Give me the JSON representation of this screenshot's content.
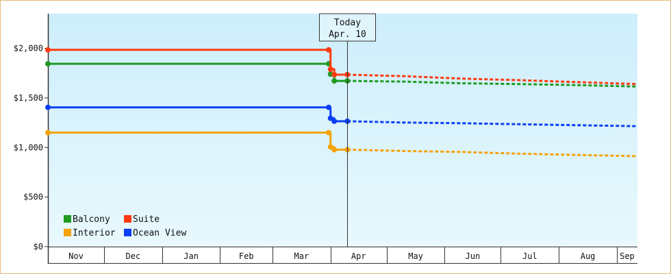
{
  "chart_data": {
    "type": "line",
    "title": "",
    "xlabel": "",
    "ylabel": "",
    "ylim": [
      0,
      2350
    ],
    "y_ticks": [
      0,
      500,
      1000,
      1500,
      2000
    ],
    "y_tick_labels": [
      "$0",
      "$500",
      "$1,000",
      "$1,500",
      "$2,000"
    ],
    "x_axis": {
      "months": [
        {
          "label": "Nov",
          "start": "2018-11-01",
          "end": "2018-12-01"
        },
        {
          "label": "Dec",
          "start": "2018-12-01",
          "end": "2019-01-01"
        },
        {
          "label": "Jan",
          "start": "2019-01-01",
          "end": "2019-02-01"
        },
        {
          "label": "Feb",
          "start": "2019-02-01",
          "end": "2019-03-01"
        },
        {
          "label": "Mar",
          "start": "2019-03-01",
          "end": "2019-04-01"
        },
        {
          "label": "Apr",
          "start": "2019-04-01",
          "end": "2019-05-01"
        },
        {
          "label": "May",
          "start": "2019-05-01",
          "end": "2019-06-01"
        },
        {
          "label": "Jun",
          "start": "2019-06-01",
          "end": "2019-07-01"
        },
        {
          "label": "Jul",
          "start": "2019-07-01",
          "end": "2019-08-01"
        },
        {
          "label": "Aug",
          "start": "2019-08-01",
          "end": "2019-09-01"
        },
        {
          "label": "Sep",
          "start": "2019-09-01",
          "end": "2019-09-12"
        }
      ],
      "range": [
        "2018-11-01",
        "2019-09-12"
      ]
    },
    "today": {
      "title": "Today",
      "label": "Apr. 10",
      "date": "2019-04-10"
    },
    "grid": false,
    "legend_position": "bottom-left",
    "series": [
      {
        "name": "Balcony",
        "color": "#1f9a1f",
        "actual": [
          {
            "date": "2018-11-01",
            "value": 1845
          },
          {
            "date": "2019-03-31",
            "value": 1845
          },
          {
            "date": "2019-04-01",
            "value": 1740
          },
          {
            "date": "2019-04-03",
            "value": 1672
          },
          {
            "date": "2019-04-10",
            "value": 1672
          }
        ],
        "forecast": [
          {
            "date": "2019-04-10",
            "value": 1672
          },
          {
            "date": "2019-05-10",
            "value": 1665
          },
          {
            "date": "2019-06-10",
            "value": 1648
          },
          {
            "date": "2019-07-10",
            "value": 1640
          },
          {
            "date": "2019-08-10",
            "value": 1630
          },
          {
            "date": "2019-09-12",
            "value": 1615
          }
        ]
      },
      {
        "name": "Suite",
        "color": "#ff3a10",
        "actual": [
          {
            "date": "2018-11-01",
            "value": 1985
          },
          {
            "date": "2019-03-31",
            "value": 1985
          },
          {
            "date": "2019-04-01",
            "value": 1790
          },
          {
            "date": "2019-04-03",
            "value": 1735
          },
          {
            "date": "2019-04-10",
            "value": 1735
          }
        ],
        "forecast": [
          {
            "date": "2019-04-10",
            "value": 1735
          },
          {
            "date": "2019-05-10",
            "value": 1720
          },
          {
            "date": "2019-06-10",
            "value": 1695
          },
          {
            "date": "2019-07-10",
            "value": 1680
          },
          {
            "date": "2019-08-10",
            "value": 1660
          },
          {
            "date": "2019-09-12",
            "value": 1640
          }
        ]
      },
      {
        "name": "Interior",
        "color": "#f5a20a",
        "actual": [
          {
            "date": "2018-11-01",
            "value": 1150
          },
          {
            "date": "2019-03-31",
            "value": 1150
          },
          {
            "date": "2019-04-01",
            "value": 1005
          },
          {
            "date": "2019-04-03",
            "value": 978
          },
          {
            "date": "2019-04-10",
            "value": 978
          }
        ],
        "forecast": [
          {
            "date": "2019-04-10",
            "value": 978
          },
          {
            "date": "2019-05-10",
            "value": 965
          },
          {
            "date": "2019-06-10",
            "value": 955
          },
          {
            "date": "2019-07-10",
            "value": 938
          },
          {
            "date": "2019-08-10",
            "value": 925
          },
          {
            "date": "2019-09-12",
            "value": 912
          }
        ]
      },
      {
        "name": "Ocean View",
        "color": "#0a3ff5",
        "actual": [
          {
            "date": "2018-11-01",
            "value": 1405
          },
          {
            "date": "2019-03-31",
            "value": 1405
          },
          {
            "date": "2019-04-01",
            "value": 1295
          },
          {
            "date": "2019-04-03",
            "value": 1265
          },
          {
            "date": "2019-04-10",
            "value": 1265
          }
        ],
        "forecast": [
          {
            "date": "2019-04-10",
            "value": 1265
          },
          {
            "date": "2019-05-10",
            "value": 1252
          },
          {
            "date": "2019-06-10",
            "value": 1245
          },
          {
            "date": "2019-07-10",
            "value": 1235
          },
          {
            "date": "2019-08-10",
            "value": 1225
          },
          {
            "date": "2019-09-12",
            "value": 1215
          }
        ]
      }
    ]
  },
  "theme": {
    "plot_top": "#cdeefb",
    "plot_bottom": "#e8f8fd",
    "axis": "#333333",
    "text": "#111111",
    "frame": "#e8b878"
  }
}
